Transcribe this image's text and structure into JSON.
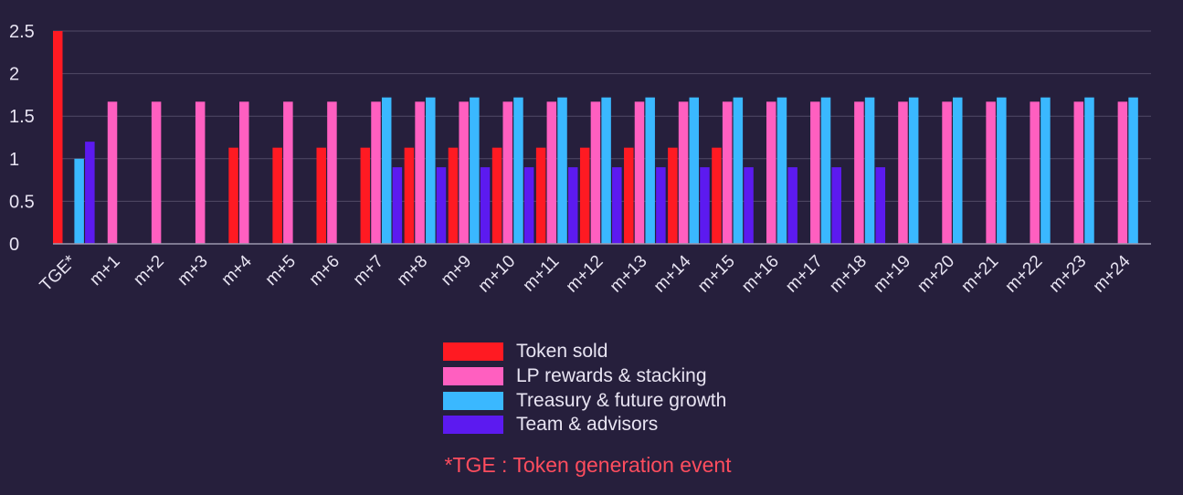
{
  "chart_data": {
    "type": "bar",
    "ylim": [
      0,
      2.5
    ],
    "yticks": [
      "0",
      "0.5",
      "1",
      "1.5",
      "2",
      "2.5"
    ],
    "categories": [
      "TGE*",
      "m+1",
      "m+2",
      "m+3",
      "m+4",
      "m+5",
      "m+6",
      "m+7",
      "m+8",
      "m+9",
      "m+10",
      "m+11",
      "m+12",
      "m+13",
      "m+14",
      "m+15",
      "m+16",
      "m+17",
      "m+18",
      "m+19",
      "m+20",
      "m+21",
      "m+22",
      "m+23",
      "m+24"
    ],
    "series": [
      {
        "name": "Token sold",
        "color": "#ff1a22",
        "values": [
          2.5,
          0,
          0,
          0,
          1.13,
          1.13,
          1.13,
          1.13,
          1.13,
          1.13,
          1.13,
          1.13,
          1.13,
          1.13,
          1.13,
          1.13,
          0,
          0,
          0,
          0,
          0,
          0,
          0,
          0,
          0
        ]
      },
      {
        "name": "LP rewards & stacking",
        "color": "#ff5fc0",
        "values": [
          0,
          1.67,
          1.67,
          1.67,
          1.67,
          1.67,
          1.67,
          1.67,
          1.67,
          1.67,
          1.67,
          1.67,
          1.67,
          1.67,
          1.67,
          1.67,
          1.67,
          1.67,
          1.67,
          1.67,
          1.67,
          1.67,
          1.67,
          1.67,
          1.67
        ]
      },
      {
        "name": "Treasury & future growth",
        "color": "#3ab8ff",
        "values": [
          1.0,
          0,
          0,
          0,
          0,
          0,
          0,
          1.72,
          1.72,
          1.72,
          1.72,
          1.72,
          1.72,
          1.72,
          1.72,
          1.72,
          1.72,
          1.72,
          1.72,
          1.72,
          1.72,
          1.72,
          1.72,
          1.72,
          1.72
        ]
      },
      {
        "name": "Team & advisors",
        "color": "#5c1af0",
        "values": [
          1.2,
          0,
          0,
          0,
          0,
          0,
          0,
          0.9,
          0.9,
          0.9,
          0.9,
          0.9,
          0.9,
          0.9,
          0.9,
          0.9,
          0.9,
          0.9,
          0.9,
          0,
          0,
          0,
          0,
          0,
          0
        ]
      }
    ],
    "grid": true,
    "legend_position": "bottom-center",
    "colors": {
      "background": "#261f3c",
      "grid": "#514a66",
      "text": "#e8e4f2",
      "footnote": "#ff4d5e"
    }
  },
  "footnote": "*TGE : Token generation event"
}
